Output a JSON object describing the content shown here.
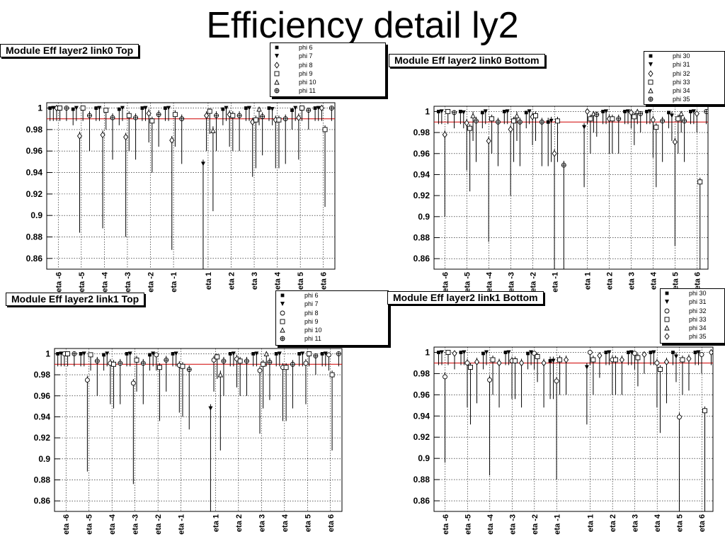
{
  "slide": {
    "title": "Efficiency detail ly2"
  },
  "chart_data": [
    {
      "type": "scatter",
      "title": "Module Eff layer2 link0 Top",
      "categories": [
        "eta -6",
        "eta -5",
        "eta -4",
        "eta -3",
        "eta -2",
        "eta -1",
        "eta 1",
        "eta 2",
        "eta 3",
        "eta 4",
        "eta 5",
        "eta 6"
      ],
      "ylim": [
        0.85,
        1.005
      ],
      "yticks": [
        "1",
        "0.98",
        "0.96",
        "0.94",
        "0.92",
        "0.9",
        "0.88",
        "0.86"
      ],
      "reference_line": 0.99,
      "grid": true,
      "legend_placement": "top-center",
      "series": [
        {
          "name": "phi 6",
          "marker": "square",
          "values": [
            1.0,
            0.999,
            1.0,
            0.999,
            1.0,
            1.0,
            null,
            0.999,
            1.0,
            1.0,
            0.998,
            1.0
          ]
        },
        {
          "name": "phi 7",
          "marker": "triangle-down",
          "values": [
            1.0,
            1.0,
            1.0,
            1.0,
            1.0,
            1.0,
            0.948,
            1.0,
            1.0,
            0.999,
            1.0,
            1.0
          ]
        },
        {
          "name": "phi 8",
          "marker": "diamond",
          "values": [
            1.0,
            0.974,
            0.975,
            0.973,
            0.995,
            0.97,
            0.993,
            0.994,
            0.987,
            0.989,
            0.991,
            1.0
          ]
        },
        {
          "name": "phi 9",
          "marker": "square-open",
          "values": [
            1.0,
            1.0,
            0.998,
            0.993,
            0.988,
            0.994,
            0.997,
            0.993,
            0.989,
            0.989,
            1.0,
            0.98
          ]
        },
        {
          "name": "phi 10",
          "marker": "triangle-up",
          "values": [
            null,
            null,
            null,
            null,
            null,
            null,
            0.979,
            null,
            0.999,
            null,
            null,
            null
          ]
        },
        {
          "name": "phi 11",
          "marker": "cross",
          "values": [
            1.0,
            0.993,
            0.991,
            0.991,
            0.994,
            0.99,
            0.993,
            0.993,
            0.992,
            0.99,
            0.998,
            1.0
          ]
        }
      ]
    },
    {
      "type": "scatter",
      "title": "Module Eff layer2 link0 Bottom",
      "categories": [
        "eta -6",
        "eta -5",
        "eta -4",
        "eta -3",
        "eta -2",
        "eta -1",
        "eta 1",
        "eta 2",
        "eta 3",
        "eta 4",
        "eta 5",
        "eta 6"
      ],
      "ylim": [
        0.85,
        1.005
      ],
      "yticks": [
        "1",
        "0.98",
        "0.96",
        "0.94",
        "0.92",
        "0.9",
        "0.88",
        "0.86"
      ],
      "reference_line": 0.99,
      "grid": true,
      "legend_placement": "top-right",
      "series": [
        {
          "name": "phi 30",
          "marker": "square",
          "values": [
            1.0,
            1.0,
            0.999,
            1.0,
            0.999,
            0.99,
            null,
            1.0,
            1.0,
            1.0,
            0.999,
            1.0
          ]
        },
        {
          "name": "phi 31",
          "marker": "triangle-down",
          "values": [
            1.0,
            0.999,
            1.0,
            1.0,
            1.0,
            0.991,
            0.985,
            1.0,
            1.0,
            1.0,
            0.996,
            1.0
          ]
        },
        {
          "name": "phi 32",
          "marker": "diamond",
          "values": [
            0.978,
            0.989,
            0.972,
            0.983,
            0.995,
            0.96,
            1.0,
            0.993,
            0.999,
            0.992,
            0.971,
            0.998
          ]
        },
        {
          "name": "phi 33",
          "marker": "square-open",
          "values": [
            1.0,
            0.984,
            0.993,
            0.991,
            0.996,
            0.991,
            0.993,
            0.993,
            0.995,
            0.985,
            0.993,
            0.933
          ]
        },
        {
          "name": "phi 34",
          "marker": "triangle-up",
          "values": [
            null,
            0.996,
            null,
            0.996,
            null,
            null,
            0.998,
            null,
            1.0,
            null,
            0.998,
            null
          ]
        },
        {
          "name": "phi 35",
          "marker": "cross",
          "values": [
            0.999,
            0.991,
            0.99,
            0.99,
            0.99,
            0.949,
            0.997,
            0.993,
            0.998,
            0.991,
            0.991,
            1.0
          ]
        }
      ]
    },
    {
      "type": "scatter",
      "title": "Module Eff layer2 link1 Top",
      "categories": [
        "eta -6",
        "eta -5",
        "eta -4",
        "eta -3",
        "eta -2",
        "eta -1",
        "eta 1",
        "eta 2",
        "eta 3",
        "eta 4",
        "eta 5",
        "eta 6"
      ],
      "ylim": [
        0.85,
        1.005
      ],
      "yticks": [
        "1",
        "0.98",
        "0.96",
        "0.94",
        "0.92",
        "0.9",
        "0.88",
        "0.86"
      ],
      "reference_line": 0.99,
      "grid": true,
      "legend_placement": "top-right",
      "series": [
        {
          "name": "phi 6",
          "marker": "square",
          "values": [
            1.0,
            1.0,
            0.999,
            1.0,
            0.999,
            1.0,
            null,
            1.0,
            1.0,
            1.0,
            1.0,
            1.0
          ]
        },
        {
          "name": "phi 7",
          "marker": "triangle-down",
          "values": [
            1.0,
            1.0,
            1.0,
            1.0,
            1.0,
            1.0,
            0.948,
            1.0,
            1.0,
            1.0,
            1.0,
            1.0
          ]
        },
        {
          "name": "phi 8",
          "marker": "circle",
          "values": [
            1.0,
            0.975,
            0.991,
            0.972,
            0.999,
            0.989,
            0.994,
            0.995,
            0.984,
            0.987,
            0.991,
            0.999
          ]
        },
        {
          "name": "phi 9",
          "marker": "square-open",
          "values": [
            1.0,
            0.999,
            0.99,
            0.994,
            0.987,
            0.988,
            0.997,
            0.993,
            0.99,
            0.987,
            1.0,
            0.98
          ]
        },
        {
          "name": "phi 10",
          "marker": "triangle-up",
          "values": [
            null,
            null,
            null,
            null,
            null,
            null,
            0.98,
            null,
            1.0,
            null,
            null,
            null
          ]
        },
        {
          "name": "phi 11",
          "marker": "cross",
          "values": [
            1.0,
            0.993,
            0.991,
            0.991,
            0.994,
            0.985,
            0.993,
            0.993,
            0.992,
            0.99,
            0.998,
            1.0
          ]
        }
      ]
    },
    {
      "type": "scatter",
      "title": "Module Eff layer2 link1 Bottom",
      "categories": [
        "eta -6",
        "eta -5",
        "eta -4",
        "eta -3",
        "eta -2",
        "eta -1",
        "eta 1",
        "eta 2",
        "eta 3",
        "eta 4",
        "eta 5",
        "eta 6"
      ],
      "ylim": [
        0.85,
        1.005
      ],
      "yticks": [
        "1",
        "0.98",
        "0.96",
        "0.94",
        "0.92",
        "0.9",
        "0.88",
        "0.86"
      ],
      "reference_line": 0.99,
      "grid": true,
      "legend_placement": "top-right",
      "series": [
        {
          "name": "phi 30",
          "marker": "square",
          "values": [
            1.0,
            1.0,
            0.999,
            1.0,
            0.999,
            0.992,
            null,
            1.0,
            1.0,
            1.0,
            1.0,
            1.0
          ]
        },
        {
          "name": "phi 31",
          "marker": "triangle-down",
          "values": [
            1.0,
            1.0,
            1.0,
            1.0,
            1.0,
            0.992,
            0.986,
            1.0,
            1.0,
            1.0,
            0.996,
            1.0
          ]
        },
        {
          "name": "phi 32",
          "marker": "circle",
          "values": [
            0.977,
            0.99,
            0.974,
            0.992,
            0.999,
            0.973,
            1.0,
            0.993,
            0.999,
            0.99,
            0.939,
            0.998
          ]
        },
        {
          "name": "phi 33",
          "marker": "square-open",
          "values": [
            1.0,
            0.986,
            0.993,
            0.992,
            0.996,
            0.993,
            0.993,
            0.993,
            0.995,
            0.984,
            0.993,
            0.945
          ]
        },
        {
          "name": "phi 34",
          "marker": "triangle-up",
          "values": [
            null,
            null,
            null,
            null,
            null,
            null,
            null,
            null,
            null,
            null,
            null,
            null
          ]
        },
        {
          "name": "phi 35",
          "marker": "diamond",
          "values": [
            0.999,
            0.991,
            0.99,
            0.99,
            0.99,
            0.993,
            0.997,
            0.993,
            0.998,
            0.991,
            0.994,
            1.0
          ]
        }
      ]
    }
  ]
}
